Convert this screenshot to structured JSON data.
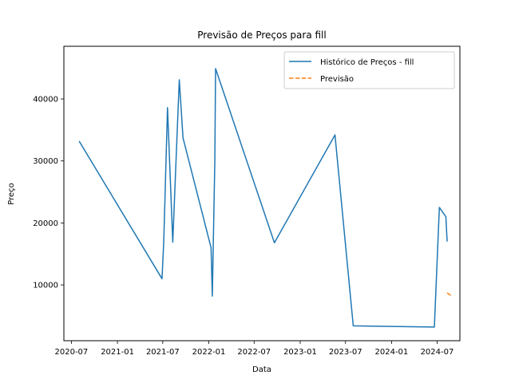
{
  "chart_data": {
    "type": "line",
    "title": "Previsão de Preços para fill",
    "xlabel": "Data",
    "ylabel": "Preço",
    "x_type": "date",
    "xlim": [
      "2020-06-01",
      "2024-09-30"
    ],
    "ylim": [
      1000,
      48500
    ],
    "x_ticks": [
      {
        "value": "2020-07-01",
        "label": "2020-07"
      },
      {
        "value": "2021-01-01",
        "label": "2021-01"
      },
      {
        "value": "2021-07-01",
        "label": "2021-07"
      },
      {
        "value": "2022-01-01",
        "label": "2022-01"
      },
      {
        "value": "2022-07-01",
        "label": "2022-07"
      },
      {
        "value": "2023-01-01",
        "label": "2023-01"
      },
      {
        "value": "2023-07-01",
        "label": "2023-07"
      },
      {
        "value": "2024-01-01",
        "label": "2024-01"
      },
      {
        "value": "2024-07-01",
        "label": "2024-07"
      }
    ],
    "y_ticks": [
      {
        "value": 10000,
        "label": "10000"
      },
      {
        "value": 20000,
        "label": "20000"
      },
      {
        "value": 30000,
        "label": "30000"
      },
      {
        "value": 40000,
        "label": "40000"
      }
    ],
    "grid": false,
    "legend_position": "top-right",
    "series": [
      {
        "name": "Histórico de Preços - fill",
        "color": "#1f77b4",
        "style": "solid",
        "points": [
          {
            "x": "2020-08-01",
            "y": 33200
          },
          {
            "x": "2021-06-28",
            "y": 11000
          },
          {
            "x": "2021-07-05",
            "y": 17000
          },
          {
            "x": "2021-07-20",
            "y": 38600
          },
          {
            "x": "2021-08-10",
            "y": 16900
          },
          {
            "x": "2021-09-05",
            "y": 43100
          },
          {
            "x": "2021-09-20",
            "y": 33700
          },
          {
            "x": "2022-01-10",
            "y": 16000
          },
          {
            "x": "2022-01-15",
            "y": 8200
          },
          {
            "x": "2022-01-25",
            "y": 30000
          },
          {
            "x": "2022-01-28",
            "y": 44900
          },
          {
            "x": "2022-09-20",
            "y": 16800
          },
          {
            "x": "2023-05-20",
            "y": 34200
          },
          {
            "x": "2023-08-01",
            "y": 3400
          },
          {
            "x": "2024-06-20",
            "y": 3200
          },
          {
            "x": "2024-07-10",
            "y": 22500
          },
          {
            "x": "2024-08-05",
            "y": 21000
          },
          {
            "x": "2024-08-10",
            "y": 17000
          }
        ]
      },
      {
        "name": "Previsão",
        "color": "#ff7f0e",
        "style": "dashed",
        "points": [
          {
            "x": "2024-08-10",
            "y": 8700
          },
          {
            "x": "2024-08-25",
            "y": 8300
          }
        ]
      }
    ]
  }
}
